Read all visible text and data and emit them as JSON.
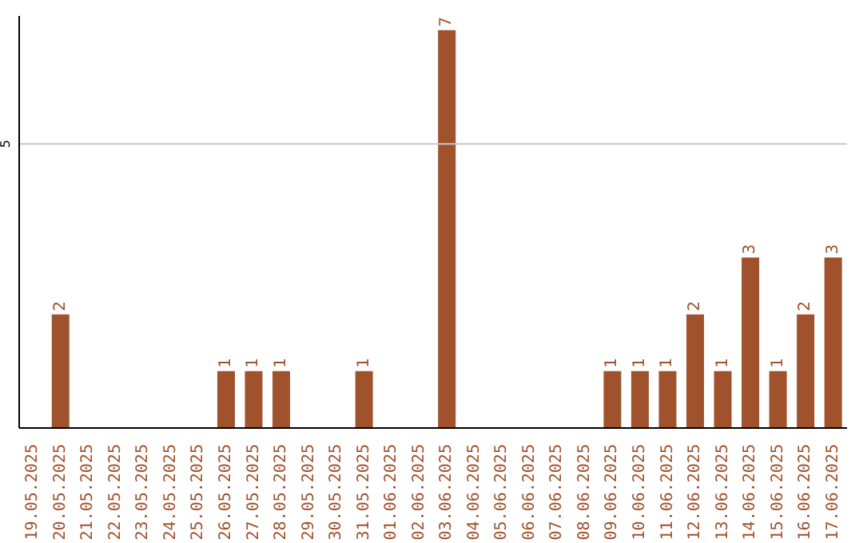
{
  "chart_data": {
    "type": "bar",
    "categories": [
      "19.05.2025",
      "20.05.2025",
      "21.05.2025",
      "22.05.2025",
      "23.05.2025",
      "24.05.2025",
      "25.05.2025",
      "26.05.2025",
      "27.05.2025",
      "28.05.2025",
      "29.05.2025",
      "30.05.2025",
      "31.05.2025",
      "01.06.2025",
      "02.06.2025",
      "03.06.2025",
      "04.06.2025",
      "05.06.2025",
      "06.06.2025",
      "07.06.2025",
      "08.06.2025",
      "09.06.2025",
      "10.06.2025",
      "11.06.2025",
      "12.06.2025",
      "13.06.2025",
      "14.06.2025",
      "15.06.2025",
      "16.06.2025",
      "17.06.2025"
    ],
    "values": [
      0,
      2,
      0,
      0,
      0,
      0,
      0,
      1,
      1,
      1,
      0,
      0,
      1,
      0,
      0,
      7,
      0,
      0,
      0,
      0,
      0,
      1,
      1,
      1,
      2,
      1,
      3,
      1,
      2,
      3
    ],
    "value_labels": [
      null,
      "2",
      null,
      null,
      null,
      null,
      null,
      "1",
      "1",
      "1",
      null,
      null,
      "1",
      null,
      null,
      "7",
      null,
      null,
      null,
      null,
      null,
      "1",
      "1",
      "1",
      "2",
      "1",
      "3",
      "1",
      "2",
      "3"
    ],
    "color": "#a0522d",
    "ylim": [
      0,
      7.25
    ],
    "yticks": [
      5
    ],
    "grid": "y"
  }
}
